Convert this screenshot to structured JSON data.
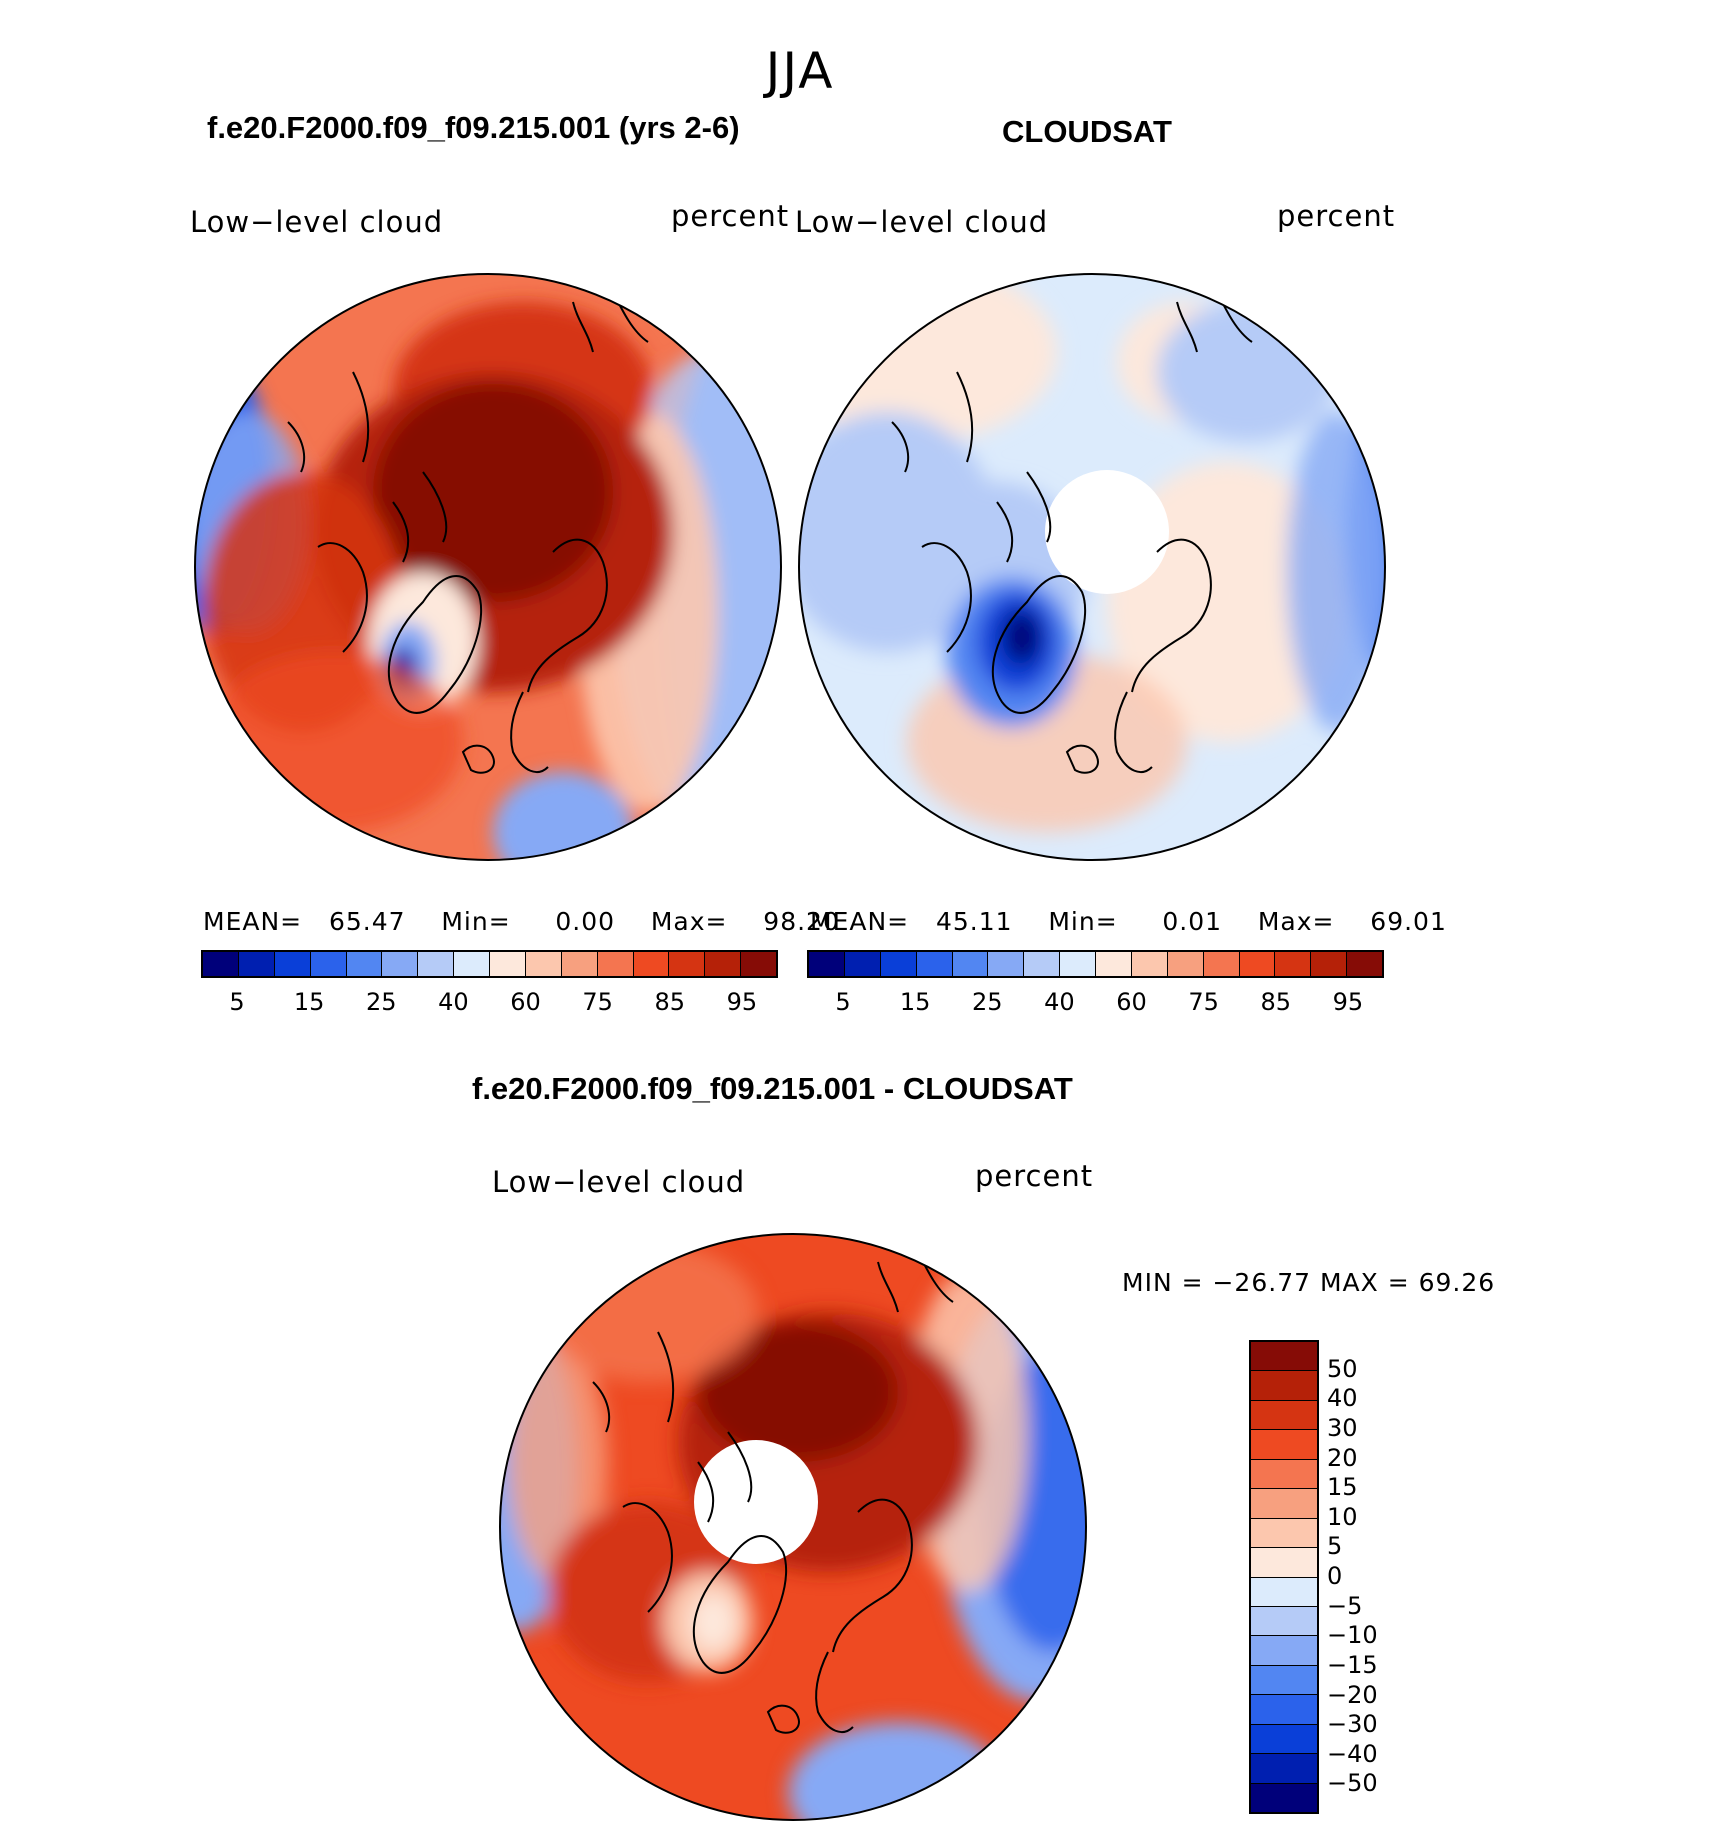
{
  "season": "JJA",
  "panels": [
    {
      "title": "f.e20.F2000.f09_f09.215.001 (yrs 2-6)",
      "variable_label": "Low−level cloud",
      "units_label": "percent",
      "stats": {
        "mean_label": "MEAN=",
        "mean": "65.47",
        "min_label": "Min=",
        "min": "0.00",
        "max_label": "Max=",
        "max": "98.20"
      },
      "colorbar_ticks": [
        "5",
        "15",
        "25",
        "40",
        "60",
        "75",
        "85",
        "95"
      ]
    },
    {
      "title": "CLOUDSAT",
      "variable_label": "Low−level cloud",
      "units_label": "percent",
      "stats": {
        "mean_label": "MEAN=",
        "mean": "45.11",
        "min_label": "Min=",
        "min": "0.01",
        "max_label": "Max=",
        "max": "69.01"
      },
      "colorbar_ticks": [
        "5",
        "15",
        "25",
        "40",
        "60",
        "75",
        "85",
        "95"
      ]
    }
  ],
  "diff_panel": {
    "title": "f.e20.F2000.f09_f09.215.001 - CLOUDSAT",
    "variable_label": "Low−level cloud",
    "units_label": "percent",
    "minmax_text": "MIN = −26.77 MAX =   69.26",
    "colorbar_ticks": [
      "50",
      "40",
      "30",
      "20",
      "15",
      "10",
      "5",
      "0",
      "−5",
      "−10",
      "−15",
      "−20",
      "−30",
      "−40",
      "−50"
    ]
  },
  "palette": {
    "levels16": [
      "#00007a",
      "#001fb0",
      "#0a3fd8",
      "#2b62eb",
      "#5286f2",
      "#86a9f5",
      "#b5cbf7",
      "#dcebfc",
      "#fde8dc",
      "#fcc7ae",
      "#f7a07f",
      "#f47550",
      "#ee4a22",
      "#d53412",
      "#b52108",
      "#860c06"
    ],
    "diff16": [
      "#860c06",
      "#b52108",
      "#d53412",
      "#ee4a22",
      "#f47550",
      "#f7a07f",
      "#fcc7ae",
      "#fde8dc",
      "#dcebfc",
      "#b5cbf7",
      "#86a9f5",
      "#5286f2",
      "#2b62eb",
      "#0a3fd8",
      "#001fb0",
      "#00007a"
    ]
  },
  "map_fields": {
    "model": "Polar stereographic, North Pole centered; warm (red) over Arctic Ocean, Canada and Eurasia; blue over North Pacific/Alaska margin; blue spot over Greenland",
    "cloudsat": "Mostly pale blue and pale orange; dark blue over Greenland; white polar gap",
    "difference": "Mostly orange/red; dark red over Arctic Ocean; blue over North Pacific sector; white polar gap"
  }
}
